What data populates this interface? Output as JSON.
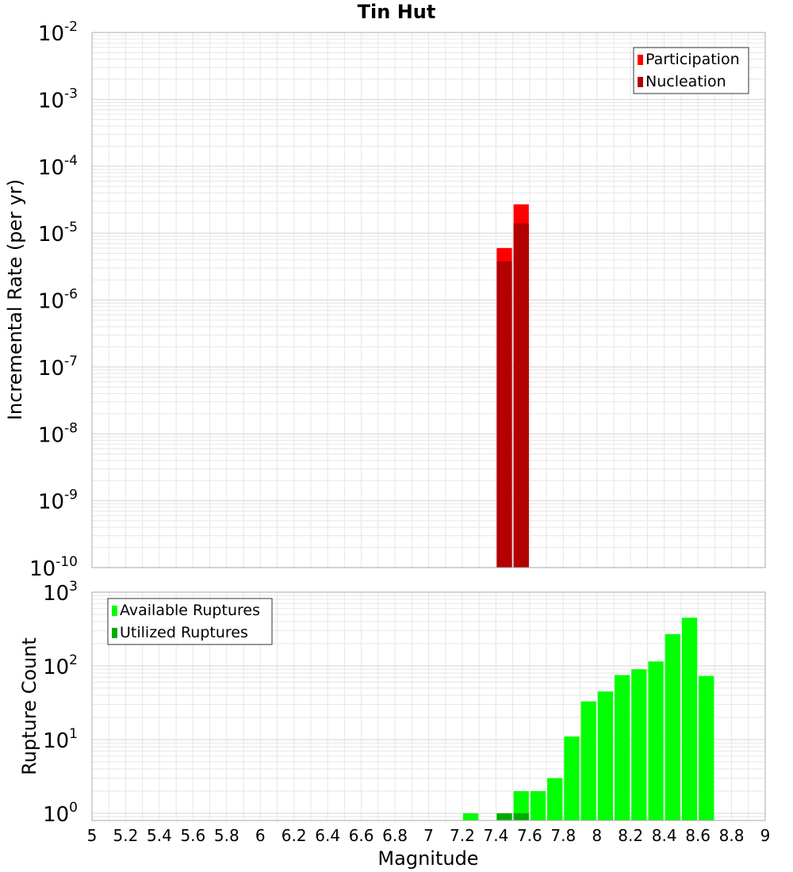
{
  "title": "Tin Hut",
  "colors": {
    "participation": "#ff0000",
    "nucleation": "#b30000",
    "available": "#00ff00",
    "utilized": "#00aa00",
    "grid": "#e6e6e6",
    "frame": "#aaaaaa"
  },
  "chart_data": [
    {
      "type": "bar",
      "title": "Tin Hut",
      "xlabel": "",
      "ylabel": "Incremental Rate (per yr)",
      "yscale": "log",
      "ylim": [
        1e-10,
        0.01
      ],
      "xlim": [
        5,
        9
      ],
      "grid": true,
      "legend_position": "top-right",
      "ytick_labels": [
        {
          "value": 0.01,
          "base": "10",
          "exp": "-2"
        },
        {
          "value": 0.001,
          "base": "10",
          "exp": "-3"
        },
        {
          "value": 0.0001,
          "base": "10",
          "exp": "-4"
        },
        {
          "value": 1e-05,
          "base": "10",
          "exp": "-5"
        },
        {
          "value": 1e-06,
          "base": "10",
          "exp": "-6"
        },
        {
          "value": 1e-07,
          "base": "10",
          "exp": "-7"
        },
        {
          "value": 1e-08,
          "base": "10",
          "exp": "-8"
        },
        {
          "value": 1e-09,
          "base": "10",
          "exp": "-9"
        },
        {
          "value": 1e-10,
          "base": "10",
          "exp": "-10"
        }
      ],
      "series": [
        {
          "name": "Participation",
          "color": "#ff0000",
          "points": [
            {
              "x": 7.45,
              "y": 6e-06
            },
            {
              "x": 7.55,
              "y": 2.7e-05
            }
          ]
        },
        {
          "name": "Nucleation",
          "color": "#b30000",
          "points": [
            {
              "x": 7.45,
              "y": 3.8e-06
            },
            {
              "x": 7.55,
              "y": 1.4e-05
            }
          ]
        }
      ]
    },
    {
      "type": "bar",
      "xlabel": "Magnitude",
      "ylabel": "Rupture Count",
      "yscale": "log",
      "ylim": [
        0.8,
        1000
      ],
      "xlim": [
        5,
        9
      ],
      "grid": true,
      "legend_position": "top-left",
      "ytick_labels": [
        {
          "value": 1000,
          "base": "10",
          "exp": "3"
        },
        {
          "value": 100,
          "base": "10",
          "exp": "2"
        },
        {
          "value": 10,
          "base": "10",
          "exp": "1"
        },
        {
          "value": 1,
          "base": "10",
          "exp": "0"
        }
      ],
      "xtick_labels": [
        "5",
        "5.2",
        "5.4",
        "5.6",
        "5.8",
        "6",
        "6.2",
        "6.4",
        "6.6",
        "6.8",
        "7",
        "7.2",
        "7.4",
        "7.6",
        "7.8",
        "8",
        "8.2",
        "8.4",
        "8.6",
        "8.8",
        "9"
      ],
      "series": [
        {
          "name": "Available Ruptures",
          "color": "#00ff00",
          "points": [
            {
              "x": 7.25,
              "y": 1
            },
            {
              "x": 7.45,
              "y": 1
            },
            {
              "x": 7.55,
              "y": 2
            },
            {
              "x": 7.65,
              "y": 2
            },
            {
              "x": 7.75,
              "y": 3
            },
            {
              "x": 7.85,
              "y": 11
            },
            {
              "x": 7.95,
              "y": 33
            },
            {
              "x": 8.05,
              "y": 45
            },
            {
              "x": 8.15,
              "y": 75
            },
            {
              "x": 8.25,
              "y": 90
            },
            {
              "x": 8.35,
              "y": 115
            },
            {
              "x": 8.45,
              "y": 270
            },
            {
              "x": 8.55,
              "y": 450
            },
            {
              "x": 8.65,
              "y": 73
            }
          ]
        },
        {
          "name": "Utilized Ruptures",
          "color": "#00aa00",
          "points": [
            {
              "x": 7.45,
              "y": 1
            },
            {
              "x": 7.55,
              "y": 1
            }
          ]
        }
      ]
    }
  ]
}
